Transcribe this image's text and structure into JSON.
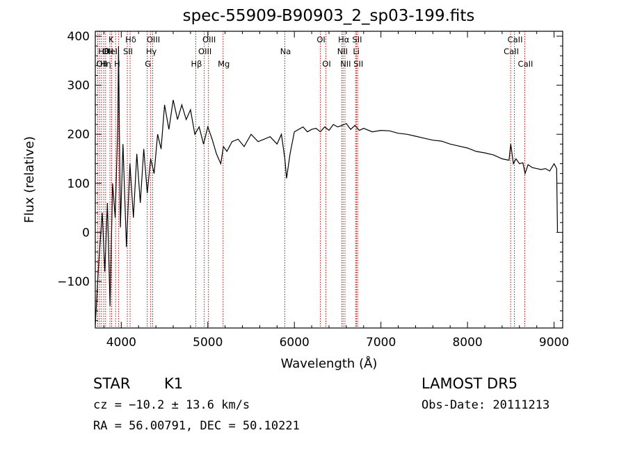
{
  "chart_data": {
    "type": "line",
    "title": "spec-55909-B90903_2_sp03-199.fits",
    "xlabel": "Wavelength (Å)",
    "ylabel": "Flux (relative)",
    "xlim": [
      3700,
      9100
    ],
    "ylim": [
      -195,
      410
    ],
    "xticks": [
      4000,
      5000,
      6000,
      7000,
      8000,
      9000
    ],
    "yticks": [
      -100,
      0,
      100,
      200,
      300,
      400
    ],
    "grid": false,
    "legend": "none",
    "series": [
      {
        "x": [
          3700,
          3740,
          3780,
          3810,
          3840,
          3870,
          3900,
          3930,
          3960,
          3968,
          3990,
          4020,
          4060,
          4100,
          4140,
          4180,
          4220,
          4260,
          4300,
          4340,
          4380,
          4420,
          4460,
          4500,
          4550,
          4600,
          4650,
          4700,
          4750,
          4800,
          4850,
          4900,
          4950,
          5000,
          5050,
          5100,
          5150,
          5180,
          5220,
          5280,
          5350,
          5420,
          5500,
          5580,
          5650,
          5720,
          5800,
          5850,
          5890,
          5910,
          5950,
          6000,
          6050,
          6100,
          6150,
          6200,
          6250,
          6300,
          6350,
          6400,
          6450,
          6500,
          6550,
          6600,
          6650,
          6700,
          6750,
          6800,
          6900,
          7000,
          7100,
          7200,
          7300,
          7400,
          7500,
          7600,
          7700,
          7800,
          7900,
          8000,
          8100,
          8200,
          8300,
          8400,
          8480,
          8500,
          8530,
          8560,
          8600,
          8640,
          8665,
          8700,
          8750,
          8800,
          8850,
          8900,
          8950,
          9000,
          9030,
          9040
        ],
        "y": [
          -190,
          -60,
          40,
          -80,
          60,
          -150,
          100,
          30,
          220,
          380,
          10,
          180,
          -30,
          140,
          30,
          160,
          60,
          170,
          80,
          150,
          120,
          200,
          170,
          260,
          210,
          270,
          230,
          260,
          230,
          250,
          200,
          215,
          180,
          215,
          190,
          160,
          140,
          175,
          165,
          185,
          190,
          175,
          200,
          185,
          190,
          195,
          180,
          200,
          150,
          110,
          160,
          205,
          210,
          215,
          205,
          210,
          212,
          205,
          215,
          208,
          220,
          215,
          218,
          222,
          210,
          218,
          208,
          212,
          205,
          208,
          207,
          202,
          200,
          196,
          192,
          188,
          186,
          180,
          176,
          172,
          165,
          162,
          158,
          150,
          147,
          180,
          140,
          150,
          140,
          142,
          120,
          138,
          132,
          130,
          128,
          130,
          125,
          140,
          130,
          0
        ]
      }
    ],
    "lines": [
      {
        "x": 3728,
        "label": "OII",
        "row": 2,
        "side": "right"
      },
      {
        "x": 3750,
        "label": "Hθ",
        "row": 1,
        "side": "right"
      },
      {
        "x": 3771,
        "label": "Hη",
        "row": 2,
        "side": "right"
      },
      {
        "x": 3798,
        "label": "OII",
        "row": 1,
        "side": "right"
      },
      {
        "x": 3819,
        "label": "HeI",
        "row": 1,
        "side": "right"
      },
      {
        "x": 3869,
        "label": "K",
        "row": 0,
        "side": "right"
      },
      {
        "x": 3889,
        "label": "",
        "row": 0,
        "side": "right"
      },
      {
        "x": 3934,
        "label": "H",
        "row": 2,
        "side": "right"
      },
      {
        "x": 3970,
        "label": "",
        "row": 0,
        "side": "right"
      },
      {
        "x": 4070,
        "label": "SII",
        "row": 1,
        "side": "left"
      },
      {
        "x": 4102,
        "label": "Hδ",
        "row": 0,
        "side": "left"
      },
      {
        "x": 4300,
        "label": "G",
        "row": 2,
        "side": "left"
      },
      {
        "x": 4340,
        "label": "Hγ",
        "row": 1,
        "side": "left"
      },
      {
        "x": 4363,
        "label": "OIII",
        "row": 0,
        "side": "left"
      },
      {
        "x": 4861,
        "label": "Hβ",
        "row": 2,
        "side": "left"
      },
      {
        "x": 4959,
        "label": "OIII",
        "row": 1,
        "side": "left"
      },
      {
        "x": 5007,
        "label": "OIII",
        "row": 0,
        "side": "left"
      },
      {
        "x": 5176,
        "label": "Mg",
        "row": 2,
        "side": "left"
      },
      {
        "x": 5890,
        "label": "Na",
        "row": 1,
        "side": "left"
      },
      {
        "x": 6300,
        "label": "OI",
        "row": 0,
        "side": "left"
      },
      {
        "x": 6364,
        "label": "OI",
        "row": 2,
        "side": "left"
      },
      {
        "x": 6548,
        "label": "NII",
        "row": 1,
        "side": "left"
      },
      {
        "x": 6563,
        "label": "Hα",
        "row": 0,
        "side": "left"
      },
      {
        "x": 6584,
        "label": "NII",
        "row": 2,
        "side": "left"
      },
      {
        "x": 6707,
        "label": "Li",
        "row": 1,
        "side": "left"
      },
      {
        "x": 6717,
        "label": "SII",
        "row": 0,
        "side": "left"
      },
      {
        "x": 6731,
        "label": "SII",
        "row": 2,
        "side": "left"
      },
      {
        "x": 8498,
        "label": "CaII",
        "row": 1,
        "side": "left"
      },
      {
        "x": 8542,
        "label": "CaII",
        "row": 0,
        "side": "left"
      },
      {
        "x": 8662,
        "label": "CaII",
        "row": 2,
        "side": "left"
      }
    ]
  },
  "info": {
    "object_class": "STAR",
    "subclass": "K1",
    "survey": "LAMOST DR5",
    "redshift": "cz = −10.2 ± 13.6 km/s",
    "obs_date": "Obs-Date: 20111213",
    "coords": "RA =  56.00791, DEC =  50.10221"
  },
  "colors": {
    "spectrum": "#000000",
    "line_marker": "#cc0000",
    "axis": "#000000"
  }
}
